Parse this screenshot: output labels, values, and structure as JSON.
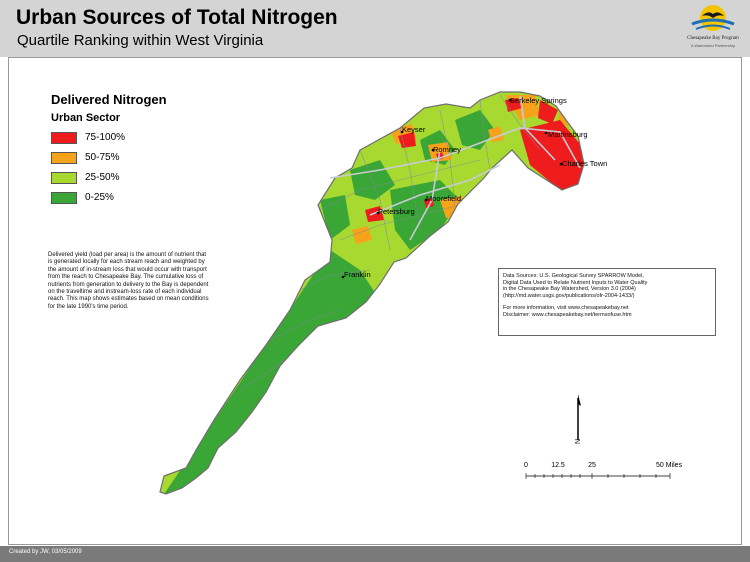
{
  "header": {
    "title": "Urban Sources of Total Nitrogen",
    "subtitle": "Quartile Ranking within West Virginia",
    "logo_line1": "Chesapeake Bay Program",
    "logo_line2": "A Watershed Partnership"
  },
  "legend": {
    "title": "Delivered Nitrogen",
    "subtitle": "Urban Sector",
    "items": [
      {
        "label": "75-100%",
        "color": "#ee1c1c"
      },
      {
        "label": "50-75%",
        "color": "#f7a21b"
      },
      {
        "label": "25-50%",
        "color": "#a8d930"
      },
      {
        "label": "0-25%",
        "color": "#3aa636"
      }
    ]
  },
  "explanation": "Delivered yield (load per area) is the amount of nutrient that is generated locally for each stream reach and weighted by the amount of in-stream loss that would occur with transport from the reach to Chesapeake Bay. The cumulative loss of nutrients from generation to delivery to the Bay is dependent on the traveltime and instream-loss rate of each individual reach.  This map shows estimates based on mean conditions for the late 1990's time period.",
  "data_sources": {
    "line1": "Data Sources:  U.S. Geological Survey SPARROW Model,",
    "line2": "Digital Data Used to Relate Nutrient Inputs to Water Quality",
    "line3": "in the Chesapeake Bay Watershed, Version 3.0 (2004)",
    "line4": "(http://md.water.usgs.gov/publications/ofr-2004-1433/)",
    "line5": "For more information, visit www.chesapeakebay.net",
    "line6": "Disclaimer: www.chesapeakebay.net/termsofuse.htm"
  },
  "places": [
    "Berkeley Springs",
    "Keyser",
    "Martinsburg",
    "Romney",
    "Charles Town",
    "Moorefield",
    "Petersburg",
    "Franklin"
  ],
  "north_label": "N",
  "scale": {
    "ticks": [
      "0",
      "12.5",
      "25",
      "50 Miles"
    ]
  },
  "footer": {
    "credit": "Created by JW, 03/05/2009"
  }
}
